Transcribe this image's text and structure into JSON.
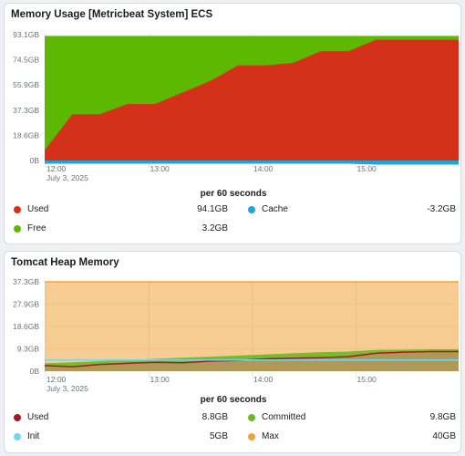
{
  "panel1": {
    "title": "Memory Usage [Metricbeat System] ECS",
    "per_label": "per 60 seconds",
    "y_ticks": [
      "93.1GB",
      "74.5GB",
      "55.9GB",
      "37.3GB",
      "18.6GB",
      "0B"
    ],
    "x_ticks": [
      "12:00",
      "13:00",
      "14:00",
      "15:00"
    ],
    "x_date": "July 3, 2025",
    "legend": [
      {
        "name": "Used",
        "value": "94.1GB",
        "color": "#d4311a"
      },
      {
        "name": "Cache",
        "value": "-3.2GB",
        "color": "#1ea4d8"
      },
      {
        "name": "Free",
        "value": "3.2GB",
        "color": "#5cb800"
      }
    ]
  },
  "panel2": {
    "title": "Tomcat Heap Memory",
    "per_label": "per 60 seconds",
    "y_ticks": [
      "37.3GB",
      "27.9GB",
      "18.6GB",
      "9.3GB",
      "0B"
    ],
    "x_ticks": [
      "12:00",
      "13:00",
      "14:00",
      "15:00"
    ],
    "x_date": "July 3, 2025",
    "legend": [
      {
        "name": "Used",
        "value": "8.8GB",
        "color": "#a41d1d"
      },
      {
        "name": "Committed",
        "value": "9.8GB",
        "color": "#6ab825"
      },
      {
        "name": "Init",
        "value": "5GB",
        "color": "#6fd8f0"
      },
      {
        "name": "Max",
        "value": "40GB",
        "color": "#f0a33a"
      }
    ]
  },
  "chart_data": [
    {
      "type": "area",
      "title": "Memory Usage [Metricbeat System] ECS",
      "xlabel": "per 60 seconds",
      "ylabel": "",
      "x": [
        "12:00",
        "12:15",
        "12:30",
        "12:45",
        "13:00",
        "13:15",
        "13:30",
        "13:45",
        "14:00",
        "14:15",
        "14:30",
        "14:45",
        "15:00",
        "15:15",
        "15:30",
        "15:45"
      ],
      "ylim": [
        0,
        98
      ],
      "series": [
        {
          "name": "Used",
          "values": [
            8,
            36,
            36,
            44,
            44,
            53,
            62,
            74,
            74,
            76,
            85,
            85,
            94,
            94,
            94,
            94
          ]
        },
        {
          "name": "Free",
          "values": [
            89,
            61,
            61,
            53,
            53,
            44,
            35,
            23,
            23,
            21,
            12,
            12,
            3,
            3,
            3,
            3
          ]
        },
        {
          "name": "Cache",
          "values": [
            -2.5,
            -2.5,
            -2.5,
            -2.5,
            -2.5,
            -2.5,
            -2.5,
            -2.5,
            -2.5,
            -2.5,
            -2.5,
            -2.5,
            -3.2,
            -3.2,
            -3.2,
            -3.2
          ]
        }
      ]
    },
    {
      "type": "area",
      "title": "Tomcat Heap Memory",
      "xlabel": "per 60 seconds",
      "ylabel": "",
      "x": [
        "12:00",
        "12:15",
        "12:30",
        "12:45",
        "13:00",
        "13:15",
        "13:30",
        "13:45",
        "14:00",
        "14:15",
        "14:30",
        "14:45",
        "15:00",
        "15:15",
        "15:30",
        "15:45"
      ],
      "ylim": [
        0,
        40
      ],
      "series": [
        {
          "name": "Max",
          "values": [
            40,
            40,
            40,
            40,
            40,
            40,
            40,
            40,
            40,
            40,
            40,
            40,
            40,
            40,
            40,
            40
          ]
        },
        {
          "name": "Committed",
          "values": [
            3.5,
            4,
            4.5,
            5,
            5.5,
            6,
            6.5,
            7,
            7.5,
            8,
            8.5,
            8.8,
            9.5,
            9.6,
            9.8,
            9.8
          ]
        },
        {
          "name": "Used",
          "values": [
            2.5,
            2,
            3,
            3.5,
            4,
            3.8,
            4.5,
            4.8,
            5.5,
            5.8,
            6,
            6.5,
            8,
            8.5,
            8.8,
            8.8
          ]
        },
        {
          "name": "Init",
          "values": [
            5,
            5,
            5,
            5,
            5,
            5,
            5,
            5,
            5,
            5,
            5,
            5,
            5,
            5,
            5,
            5
          ]
        }
      ]
    }
  ]
}
